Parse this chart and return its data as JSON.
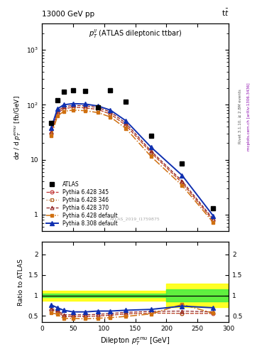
{
  "title_left": "13000 GeV pp",
  "title_right": "t$\\bar{t}$",
  "inner_title": "$p_T^{ll}$ (ATLAS dileptonic ttbar)",
  "watermark": "ATLAS_2019_I1759875",
  "rivet_label": "Rivet 3.1.10, ≥ 2.8M events",
  "mcplots_label": "mcplots.cern.ch [arXiv:1306.3436]",
  "xlabel": "Dilepton $p_T^{emu}$ [GeV]",
  "ylabel": "dσ / d $p_T^{emu}$ [fb/GeV]",
  "ylabel_ratio": "Ratio to ATLAS",
  "xlim": [
    0,
    300
  ],
  "ylim_main": [
    0.5,
    3000
  ],
  "ylim_ratio": [
    0.35,
    2.3
  ],
  "x_centers": [
    15,
    25,
    35,
    50,
    70,
    90,
    110,
    135,
    175,
    225,
    275
  ],
  "atlas_data": [
    47,
    120,
    175,
    185,
    180,
    90,
    185,
    115,
    27,
    8.5,
    1.3
  ],
  "pythia_345": [
    30,
    70,
    85,
    90,
    88,
    82,
    68,
    42,
    13.5,
    3.8,
    0.78
  ],
  "pythia_346": [
    30,
    70,
    85,
    90,
    88,
    82,
    68,
    42,
    13.5,
    3.8,
    0.78
  ],
  "pythia_370": [
    33,
    76,
    92,
    97,
    96,
    89,
    74,
    46,
    14.5,
    4.1,
    0.83
  ],
  "pythia_def": [
    27,
    62,
    76,
    80,
    78,
    72,
    60,
    37,
    11.5,
    3.4,
    0.72
  ],
  "pythia_8": [
    38,
    84,
    100,
    105,
    103,
    95,
    80,
    51,
    17,
    5.2,
    0.95
  ],
  "ratio_345": [
    0.65,
    0.6,
    0.49,
    0.49,
    0.49,
    0.5,
    0.52,
    0.55,
    0.57,
    0.565,
    0.56
  ],
  "ratio_346": [
    0.65,
    0.6,
    0.49,
    0.49,
    0.49,
    0.5,
    0.52,
    0.55,
    0.57,
    0.565,
    0.57
  ],
  "ratio_370": [
    0.68,
    0.64,
    0.53,
    0.53,
    0.53,
    0.54,
    0.56,
    0.59,
    0.61,
    0.62,
    0.6
  ],
  "ratio_def": [
    0.58,
    0.54,
    0.44,
    0.44,
    0.43,
    0.445,
    0.46,
    0.49,
    0.55,
    0.78,
    0.57
  ],
  "ratio_8": [
    0.77,
    0.7,
    0.64,
    0.6,
    0.6,
    0.62,
    0.62,
    0.64,
    0.66,
    0.74,
    0.7
  ],
  "colors": {
    "atlas": "black",
    "p345": "#c03030",
    "p346": "#b06020",
    "p370": "#902020",
    "pdef": "#d07010",
    "p8": "#1030b0"
  }
}
